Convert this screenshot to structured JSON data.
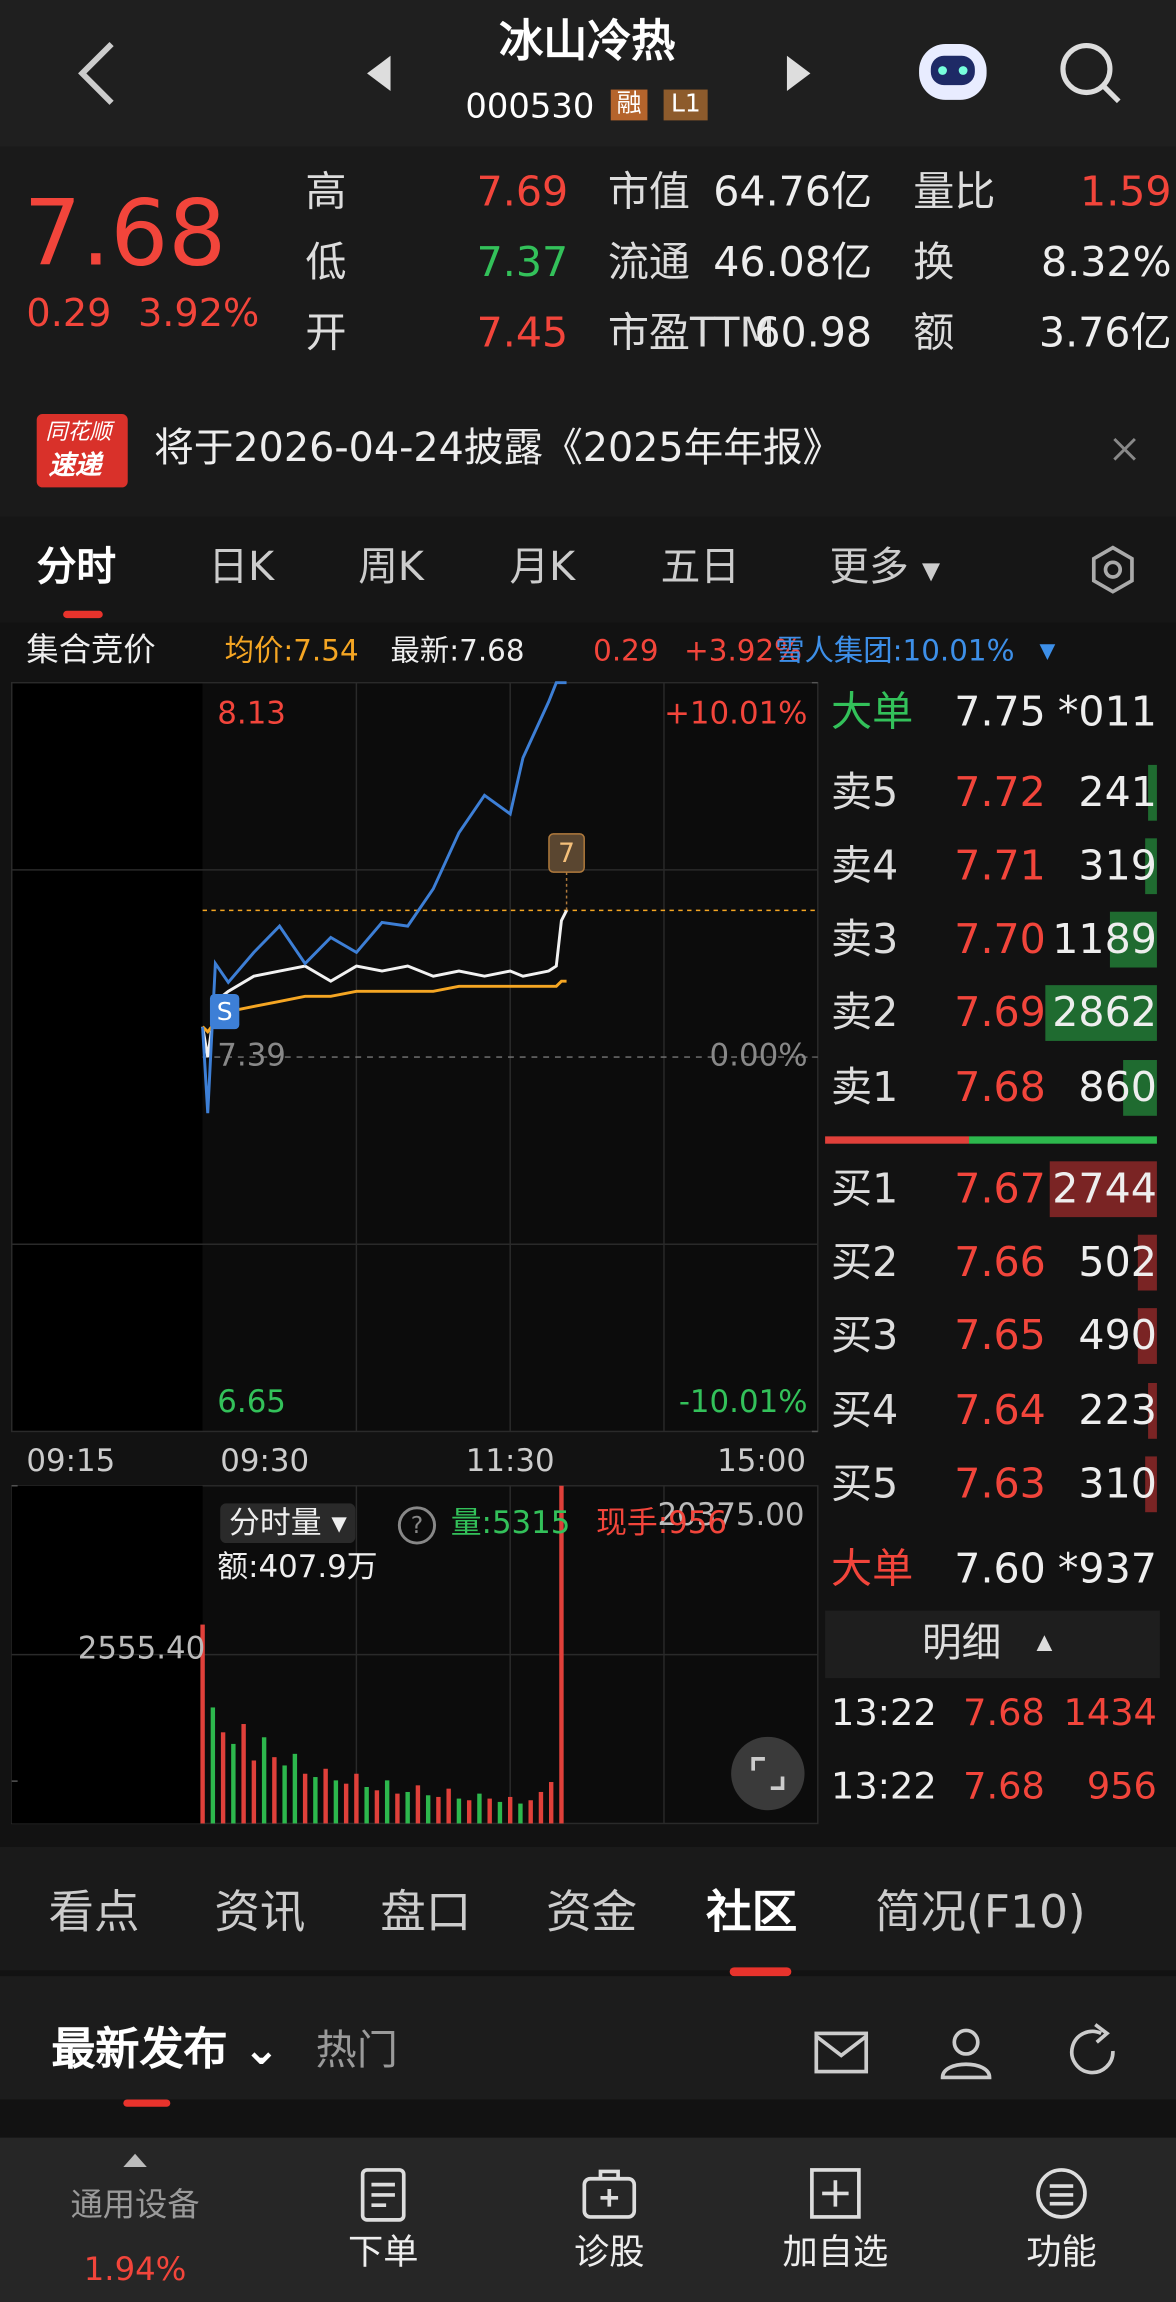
{
  "header": {
    "title": "冰山冷热",
    "code": "000530",
    "tags": [
      "融",
      "L1"
    ]
  },
  "quote": {
    "price": "7.68",
    "change": "0.29",
    "change_pct": "3.92%",
    "stats": [
      {
        "label": "高",
        "value": "7.69"
      },
      {
        "label": "低",
        "value": "7.37"
      },
      {
        "label": "开",
        "value": "7.45"
      },
      {
        "label": "市值",
        "value": "64.76亿"
      },
      {
        "label": "流通",
        "value": "46.08亿"
      },
      {
        "label": "市盈TTM",
        "value": "60.98"
      },
      {
        "label": "量比",
        "value": "1.59"
      },
      {
        "label": "换",
        "value": "8.32%"
      },
      {
        "label": "额",
        "value": "3.76亿"
      }
    ]
  },
  "notice": {
    "brand": [
      "同花顺",
      "速递"
    ],
    "text": "将于2026-04-24披露《2025年年报》"
  },
  "period_tabs": [
    "分时",
    "日K",
    "周K",
    "月K",
    "五日",
    "更多"
  ],
  "info_line": [
    "集合竞价",
    "均价:7.54",
    "最新:7.68",
    "0.29",
    "+3.92%",
    "雪人集团:10.01%"
  ],
  "markers": [
    "S",
    "7"
  ],
  "chart_data": [
    {
      "type": "line",
      "xlim": [
        "09:30",
        "15:00"
      ],
      "xticks": [
        "09:15",
        "09:30",
        "11:30",
        "15:00"
      ],
      "ylim": [
        6.65,
        8.13
      ],
      "yticks": [
        6.65,
        7.39,
        8.13
      ],
      "y2lim": [
        -10.01,
        10.01
      ],
      "y2ticks": [
        {
          "value": -10.01,
          "label": "-10.01%"
        },
        {
          "value": 0,
          "label": "0.00%"
        },
        {
          "value": 10.01,
          "label": "+10.01%"
        }
      ],
      "x": [
        "09:30",
        "09:32",
        "09:35",
        "09:40",
        "09:50",
        "10:00",
        "10:10",
        "10:20",
        "10:30",
        "10:40",
        "10:50",
        "11:00",
        "11:10",
        "11:20",
        "11:30",
        "13:05",
        "13:15",
        "13:18",
        "13:20",
        "13:22"
      ],
      "series": [
        {
          "color": "#f2f2f2",
          "values": [
            7.45,
            7.39,
            7.5,
            7.52,
            7.55,
            7.56,
            7.57,
            7.54,
            7.57,
            7.56,
            7.57,
            7.55,
            7.56,
            7.55,
            7.56,
            7.55,
            7.56,
            7.57,
            7.66,
            7.68
          ]
        },
        {
          "color": "#f5a623",
          "values": [
            7.45,
            7.44,
            7.46,
            7.48,
            7.49,
            7.5,
            7.51,
            7.51,
            7.52,
            7.52,
            7.52,
            7.52,
            7.53,
            7.53,
            7.53,
            7.53,
            7.53,
            7.53,
            7.54,
            7.54
          ]
        },
        {
          "color": "#3d7fd6",
          "axis": "y2",
          "values": [
            0.8,
            -1.5,
            2.5,
            2,
            2.8,
            3.5,
            2.5,
            3.2,
            2.8,
            3.6,
            3.5,
            4.5,
            6,
            7,
            6.5,
            8,
            9.5,
            10.01,
            10.01,
            10.01
          ]
        }
      ]
    },
    {
      "type": "bar",
      "title": "分时量",
      "ylim": [
        0,
        20375
      ],
      "yticks": [
        {
          "value": 2555.4,
          "label": "2555.40"
        },
        {
          "value": 20375,
          "label": "20375.00"
        }
      ],
      "x": [
        "09:30",
        "09:34",
        "09:38",
        "09:42",
        "09:46",
        "09:50",
        "09:54",
        "09:58",
        "10:02",
        "10:06",
        "10:10",
        "10:14",
        "10:18",
        "10:22",
        "10:26",
        "10:30",
        "10:34",
        "10:38",
        "10:42",
        "10:46",
        "10:50",
        "10:54",
        "10:58",
        "11:02",
        "11:06",
        "11:10",
        "11:14",
        "11:18",
        "11:22",
        "11:26",
        "13:00",
        "13:04",
        "13:08",
        "13:12",
        "13:16",
        "13:20"
      ],
      "values": [
        12000,
        7000,
        5500,
        4800,
        6000,
        3800,
        5200,
        4000,
        3500,
        4200,
        3000,
        2800,
        3300,
        2600,
        2400,
        3000,
        2200,
        2000,
        2600,
        1800,
        1900,
        2300,
        1700,
        1600,
        2100,
        1500,
        1400,
        1800,
        1500,
        1300,
        1600,
        1200,
        1400,
        1900,
        2500,
        20375
      ],
      "colors": [
        "#e0403a",
        "#2db84d",
        "#e0403a",
        "#2db84d",
        "#e0403a",
        "#e0403a",
        "#2db84d",
        "#e0403a",
        "#2db84d",
        "#2db84d",
        "#e0403a",
        "#2db84d",
        "#e0403a",
        "#2db84d",
        "#e0403a",
        "#e0403a",
        "#2db84d",
        "#e0403a",
        "#2db84d",
        "#e0403a",
        "#2db84d",
        "#e0403a",
        "#2db84d",
        "#e0403a",
        "#e0403a",
        "#2db84d",
        "#e0403a",
        "#2db84d",
        "#e0403a",
        "#2db84d",
        "#e0403a",
        "#2db84d",
        "#e0403a",
        "#e0403a",
        "#e0403a",
        "#e0403a"
      ],
      "stats": [
        "量:5315",
        "现手:956",
        "额:407.9万"
      ]
    }
  ],
  "order_book": {
    "top_big": {
      "label": "大单",
      "price": "7.75",
      "volume": "*011"
    },
    "asks": [
      {
        "label": "卖5",
        "price": "7.72",
        "volume": 241
      },
      {
        "label": "卖4",
        "price": "7.71",
        "volume": 319
      },
      {
        "label": "卖3",
        "price": "7.70",
        "volume": 1189
      },
      {
        "label": "卖2",
        "price": "7.69",
        "volume": 2862
      },
      {
        "label": "卖1",
        "price": "7.68",
        "volume": 860
      }
    ],
    "bids": [
      {
        "label": "买1",
        "price": "7.67",
        "volume": 2744
      },
      {
        "label": "买2",
        "price": "7.66",
        "volume": 502
      },
      {
        "label": "买3",
        "price": "7.65",
        "volume": 490
      },
      {
        "label": "买4",
        "price": "7.64",
        "volume": 223
      },
      {
        "label": "买5",
        "price": "7.63",
        "volume": 310
      }
    ],
    "bottom_big": {
      "label": "大单",
      "price": "7.60",
      "volume": "*937"
    },
    "detail_title": "明细",
    "trades": [
      {
        "time": "13:22",
        "price": "7.68",
        "volume": 1434
      },
      {
        "time": "13:22",
        "price": "7.68",
        "volume": 956
      }
    ]
  },
  "info_tabs": [
    "看点",
    "资讯",
    "盘口",
    "资金",
    "社区",
    "简况(F10)"
  ],
  "feed_tabs": [
    "最新发布",
    "热门"
  ],
  "nav": {
    "sector": "通用设备",
    "sector_change": "1.94%",
    "items": [
      "下单",
      "诊股",
      "加自选",
      "功能"
    ]
  }
}
